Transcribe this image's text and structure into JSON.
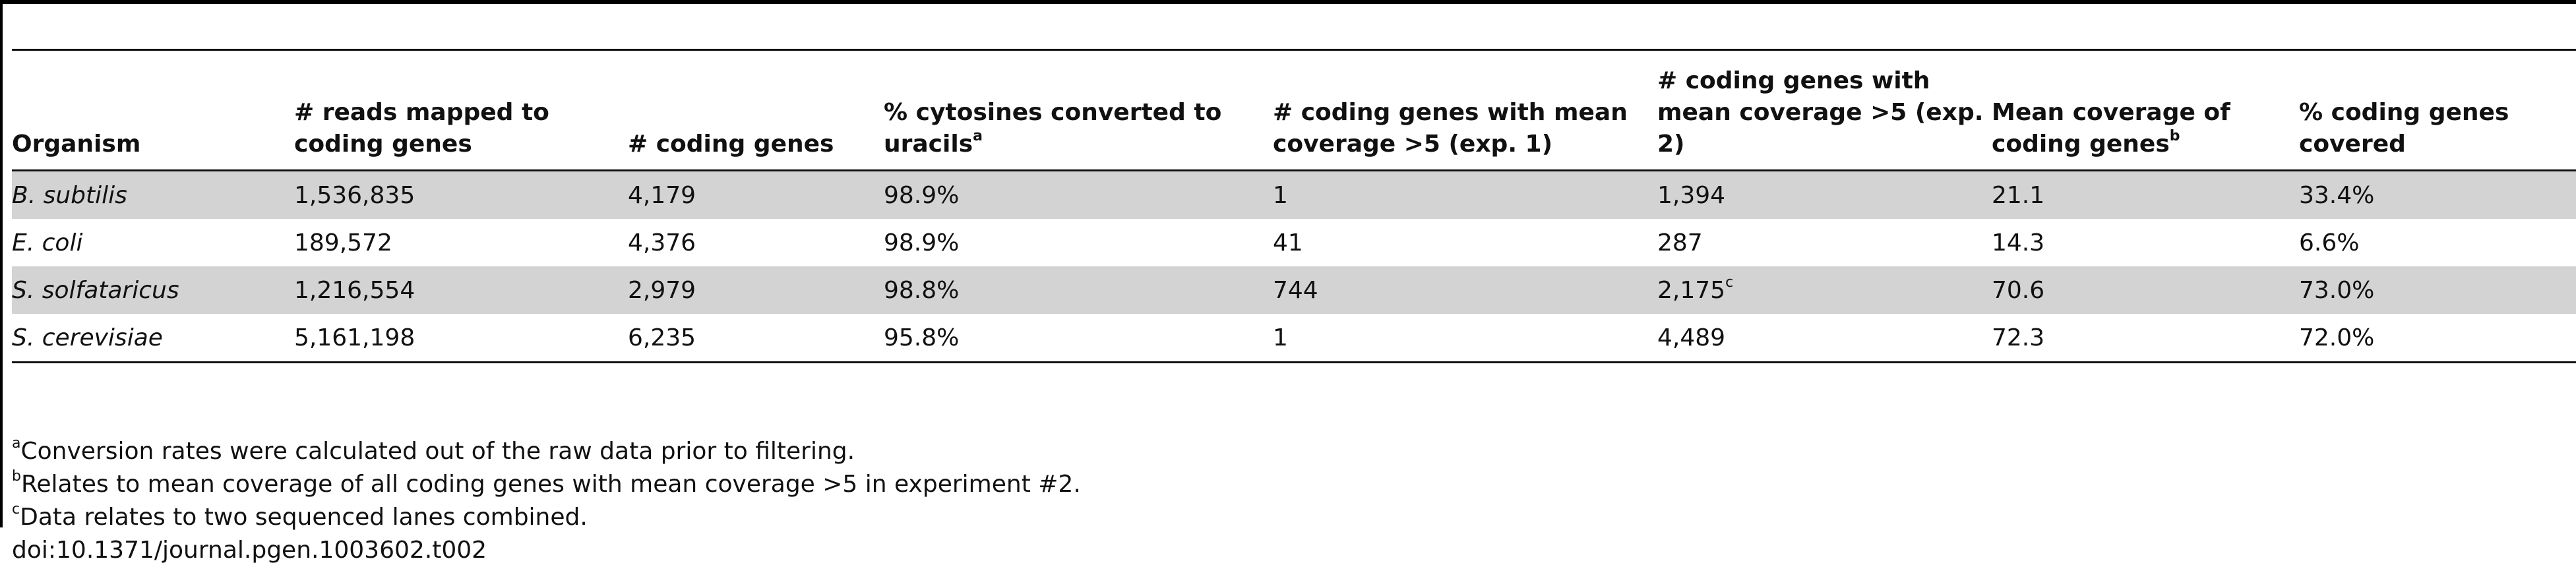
{
  "table": {
    "columns": [
      {
        "text": "Organism",
        "sup": ""
      },
      {
        "text": "# reads mapped to coding genes",
        "sup": ""
      },
      {
        "text": "# coding genes",
        "sup": ""
      },
      {
        "text": "% cytosines converted to uracils",
        "sup": "a"
      },
      {
        "text": "# coding genes with mean coverage >5 (exp. 1)",
        "sup": ""
      },
      {
        "text": "# coding genes with mean coverage >5 (exp. 2)",
        "sup": ""
      },
      {
        "text": "Mean coverage of coding genes",
        "sup": "b"
      },
      {
        "text": "% coding genes covered",
        "sup": ""
      }
    ],
    "rows": [
      {
        "cells": [
          "B. subtilis",
          "1,536,835",
          "4,179",
          "98.9%",
          "1",
          "1,394",
          "21.1",
          "33.4%"
        ],
        "sup5": ""
      },
      {
        "cells": [
          "E. coli",
          "189,572",
          "4,376",
          "98.9%",
          "41",
          "287",
          "14.3",
          "6.6%"
        ],
        "sup5": ""
      },
      {
        "cells": [
          "S. solfataricus",
          "1,216,554",
          "2,979",
          "98.8%",
          "744",
          "2,175",
          "70.6",
          "73.0%"
        ],
        "sup5": "c"
      },
      {
        "cells": [
          "S. cerevisiae",
          "5,161,198",
          "6,235",
          "95.8%",
          "1",
          "4,489",
          "72.3",
          "72.0%"
        ],
        "sup5": ""
      }
    ]
  },
  "footnotes": [
    {
      "sup": "a",
      "text": "Conversion rates were calculated out of the raw data prior to filtering."
    },
    {
      "sup": "b",
      "text": "Relates to mean coverage of all coding genes with mean coverage >5 in experiment #2."
    },
    {
      "sup": "c",
      "text": "Data relates to two sequenced lanes combined."
    }
  ],
  "doi": "doi:10.1371/journal.pgen.1003602.t002",
  "colors": {
    "shaded_row": "#d3d3d3",
    "rule": "#111111"
  }
}
